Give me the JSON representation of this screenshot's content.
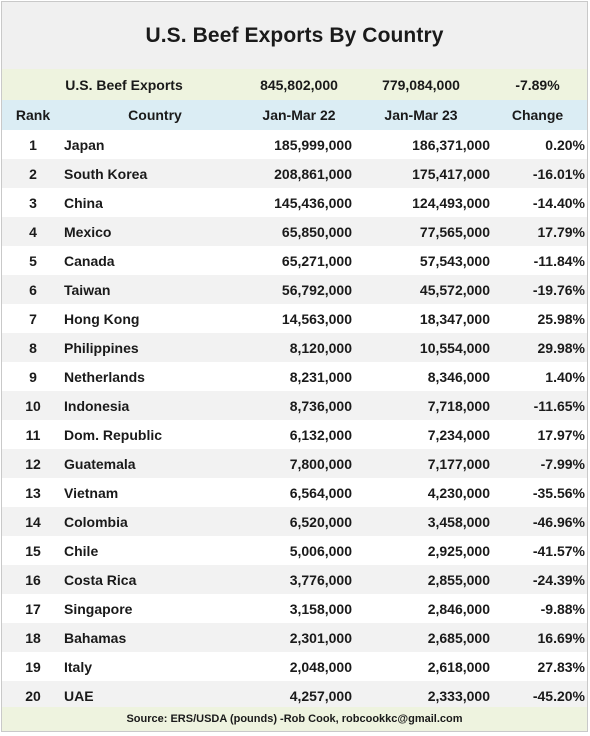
{
  "title": "U.S. Beef Exports By Country",
  "summary": {
    "label": "U.S. Beef Exports",
    "jan_mar_22": "845,802,000",
    "jan_mar_23": "779,084,000",
    "change": "-7.89%"
  },
  "columns": {
    "rank": "Rank",
    "country": "Country",
    "jan_mar_22": "Jan-Mar 22",
    "jan_mar_23": "Jan-Mar 23",
    "change": "Change"
  },
  "rows": [
    {
      "rank": "1",
      "country": "Japan",
      "jan_mar_22": "185,999,000",
      "jan_mar_23": "186,371,000",
      "change": "0.20%"
    },
    {
      "rank": "2",
      "country": "South Korea",
      "jan_mar_22": "208,861,000",
      "jan_mar_23": "175,417,000",
      "change": "-16.01%"
    },
    {
      "rank": "3",
      "country": "China",
      "jan_mar_22": "145,436,000",
      "jan_mar_23": "124,493,000",
      "change": "-14.40%"
    },
    {
      "rank": "4",
      "country": "Mexico",
      "jan_mar_22": "65,850,000",
      "jan_mar_23": "77,565,000",
      "change": "17.79%"
    },
    {
      "rank": "5",
      "country": "Canada",
      "jan_mar_22": "65,271,000",
      "jan_mar_23": "57,543,000",
      "change": "-11.84%"
    },
    {
      "rank": "6",
      "country": "Taiwan",
      "jan_mar_22": "56,792,000",
      "jan_mar_23": "45,572,000",
      "change": "-19.76%"
    },
    {
      "rank": "7",
      "country": "Hong Kong",
      "jan_mar_22": "14,563,000",
      "jan_mar_23": "18,347,000",
      "change": "25.98%"
    },
    {
      "rank": "8",
      "country": "Philippines",
      "jan_mar_22": "8,120,000",
      "jan_mar_23": "10,554,000",
      "change": "29.98%"
    },
    {
      "rank": "9",
      "country": "Netherlands",
      "jan_mar_22": "8,231,000",
      "jan_mar_23": "8,346,000",
      "change": "1.40%"
    },
    {
      "rank": "10",
      "country": "Indonesia",
      "jan_mar_22": "8,736,000",
      "jan_mar_23": "7,718,000",
      "change": "-11.65%"
    },
    {
      "rank": "11",
      "country": "Dom. Republic",
      "jan_mar_22": "6,132,000",
      "jan_mar_23": "7,234,000",
      "change": "17.97%"
    },
    {
      "rank": "12",
      "country": "Guatemala",
      "jan_mar_22": "7,800,000",
      "jan_mar_23": "7,177,000",
      "change": "-7.99%"
    },
    {
      "rank": "13",
      "country": "Vietnam",
      "jan_mar_22": "6,564,000",
      "jan_mar_23": "4,230,000",
      "change": "-35.56%"
    },
    {
      "rank": "14",
      "country": "Colombia",
      "jan_mar_22": "6,520,000",
      "jan_mar_23": "3,458,000",
      "change": "-46.96%"
    },
    {
      "rank": "15",
      "country": "Chile",
      "jan_mar_22": "5,006,000",
      "jan_mar_23": "2,925,000",
      "change": "-41.57%"
    },
    {
      "rank": "16",
      "country": "Costa Rica",
      "jan_mar_22": "3,776,000",
      "jan_mar_23": "2,855,000",
      "change": "-24.39%"
    },
    {
      "rank": "17",
      "country": "Singapore",
      "jan_mar_22": "3,158,000",
      "jan_mar_23": "2,846,000",
      "change": "-9.88%"
    },
    {
      "rank": "18",
      "country": "Bahamas",
      "jan_mar_22": "2,301,000",
      "jan_mar_23": "2,685,000",
      "change": "16.69%"
    },
    {
      "rank": "19",
      "country": "Italy",
      "jan_mar_22": "2,048,000",
      "jan_mar_23": "2,618,000",
      "change": "27.83%"
    },
    {
      "rank": "20",
      "country": "UAE",
      "jan_mar_22": "4,257,000",
      "jan_mar_23": "2,333,000",
      "change": "-45.20%"
    }
  ],
  "footer": "Source: ERS/USDA (pounds) -Rob Cook, robcookkc@gmail.com",
  "colors": {
    "title_bg": "#f0f0f0",
    "summary_bg": "#eef3df",
    "header_bg": "#dbedf4",
    "alt_row_bg": "#f2f2f2"
  }
}
